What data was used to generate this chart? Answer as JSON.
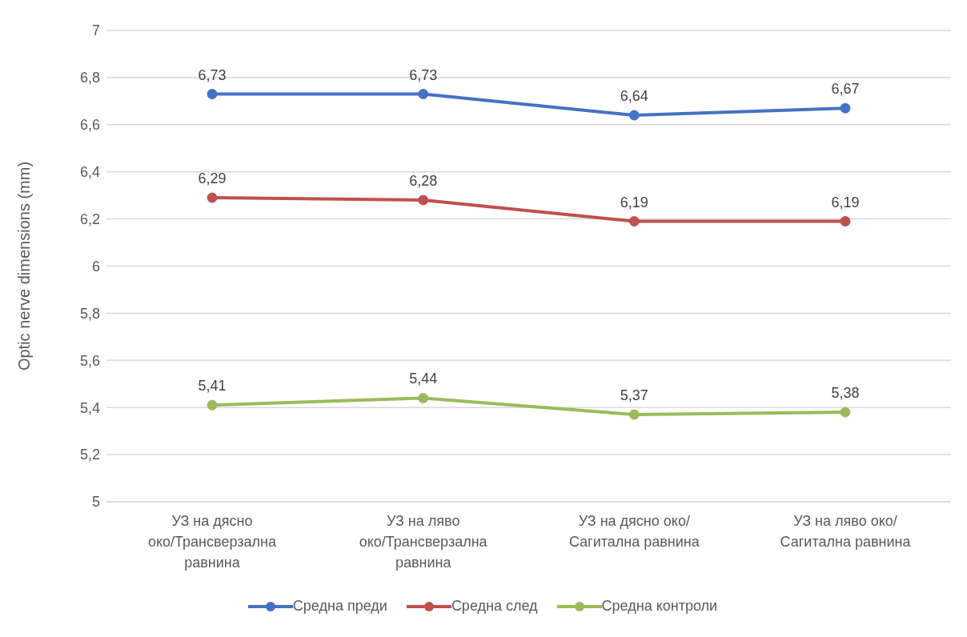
{
  "chart_data": {
    "type": "line",
    "ylabel": "Optic nerve dimensions (mm)",
    "categories": [
      "УЗ на дясно око/Трансверзална равнина",
      "УЗ на ляво око/Трансверзална равнина",
      "УЗ на дясно око/ Сагитална равнина",
      "УЗ на ляво око/ Сагитална равнина"
    ],
    "series": [
      {
        "name": "Средна преди",
        "color": "#4472c4",
        "values": [
          6.73,
          6.73,
          6.64,
          6.67
        ],
        "value_labels": [
          "6,73",
          "6,73",
          "6,64",
          "6,67"
        ]
      },
      {
        "name": "Средна след",
        "color": "#c0504d",
        "values": [
          6.29,
          6.28,
          6.19,
          6.19
        ],
        "value_labels": [
          "6,29",
          "6,28",
          "6,19",
          "6,19"
        ]
      },
      {
        "name": "Средна контроли",
        "color": "#9bbb59",
        "values": [
          5.41,
          5.44,
          5.37,
          5.38
        ],
        "value_labels": [
          "5,41",
          "5,44",
          "5,37",
          "5,38"
        ]
      }
    ],
    "ylim": [
      5,
      7
    ],
    "yticks": [
      5,
      {
        "value": 5.2,
        "label": "5,2"
      },
      {
        "value": 5.4,
        "label": "5,4"
      },
      {
        "value": 5.6,
        "label": "5,6"
      },
      {
        "value": 5.8,
        "label": "5,8"
      },
      6,
      {
        "value": 6.2,
        "label": "6,2"
      },
      {
        "value": 6.4,
        "label": "6,4"
      },
      {
        "value": 6.6,
        "label": "6,6"
      },
      {
        "value": 6.8,
        "label": "6,8"
      },
      7
    ],
    "grid": "y",
    "legend": "bottom",
    "marker": "circle",
    "line_style": "solid"
  }
}
